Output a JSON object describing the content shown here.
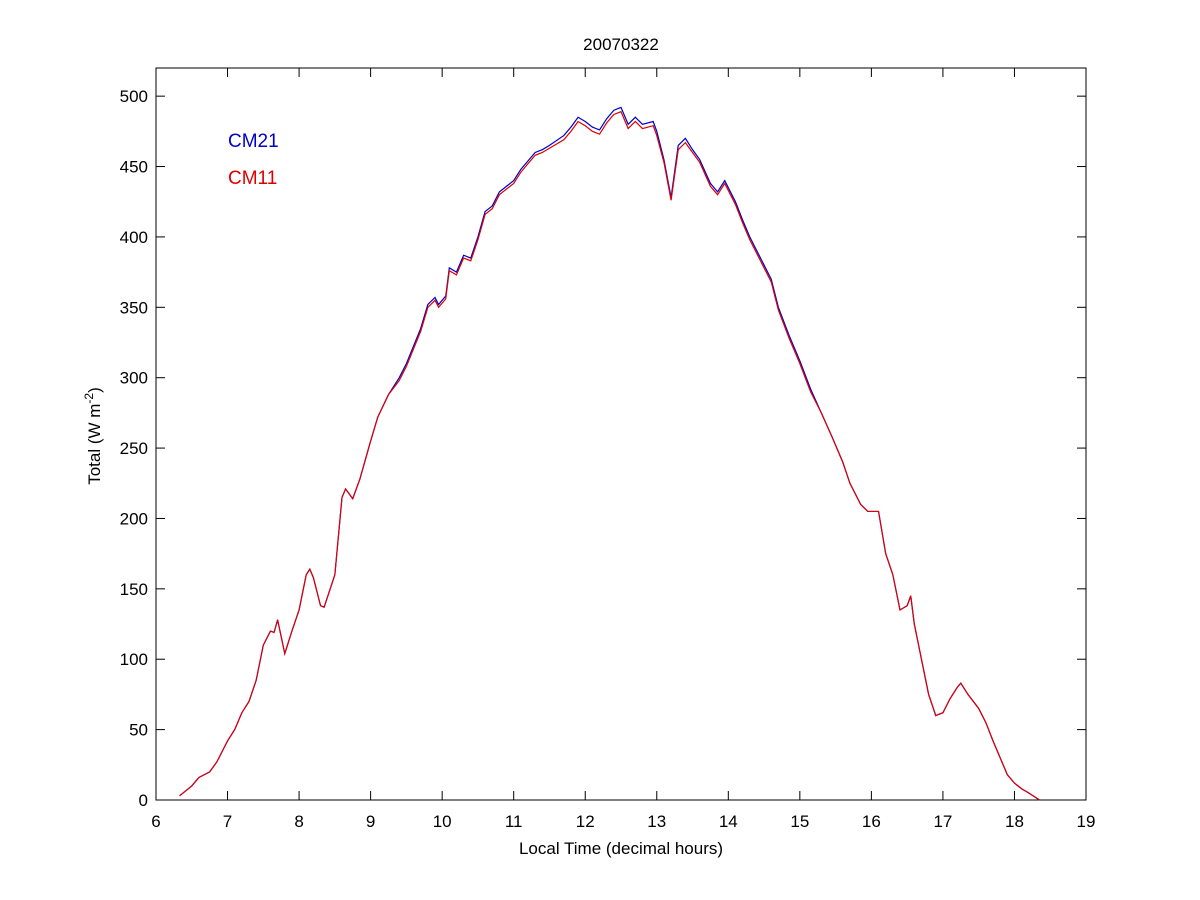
{
  "chart_data": {
    "type": "line",
    "title": "20070322",
    "xlabel": "Local Time (decimal hours)",
    "ylabel_parts": [
      "Total (W m",
      "-2",
      ")"
    ],
    "x": [
      6.33,
      6.5,
      6.6,
      6.75,
      6.85,
      7.0,
      7.1,
      7.2,
      7.3,
      7.4,
      7.5,
      7.6,
      7.65,
      7.7,
      7.8,
      7.9,
      8.0,
      8.1,
      8.15,
      8.2,
      8.3,
      8.35,
      8.5,
      8.6,
      8.65,
      8.75,
      8.85,
      9.0,
      9.1,
      9.25,
      9.4,
      9.5,
      9.7,
      9.8,
      9.9,
      9.95,
      10.05,
      10.1,
      10.2,
      10.3,
      10.4,
      10.5,
      10.6,
      10.7,
      10.8,
      11.0,
      11.1,
      11.3,
      11.4,
      11.5,
      11.7,
      11.8,
      11.9,
      12.0,
      12.1,
      12.2,
      12.3,
      12.4,
      12.5,
      12.6,
      12.7,
      12.8,
      12.95,
      13.0,
      13.1,
      13.2,
      13.3,
      13.4,
      13.5,
      13.6,
      13.75,
      13.85,
      13.95,
      14.1,
      14.2,
      14.3,
      14.45,
      14.6,
      14.7,
      14.85,
      15.0,
      15.15,
      15.3,
      15.45,
      15.6,
      15.7,
      15.85,
      15.95,
      16.0,
      16.1,
      16.2,
      16.3,
      16.4,
      16.5,
      16.55,
      16.6,
      16.7,
      16.8,
      16.9,
      17.0,
      17.1,
      17.2,
      17.25,
      17.35,
      17.5,
      17.6,
      17.7,
      17.8,
      17.9,
      18.0,
      18.1,
      18.2,
      18.35
    ],
    "series": [
      {
        "name": "CM21",
        "color": "#0000cc",
        "values": [
          3,
          10,
          16,
          20,
          27,
          42,
          50,
          62,
          70,
          85,
          110,
          120,
          119,
          128,
          104,
          120,
          135,
          160,
          164,
          158,
          138,
          137,
          160,
          215,
          221,
          214,
          228,
          255,
          272,
          288,
          300,
          310,
          335,
          352,
          357,
          352,
          358,
          378,
          375,
          387,
          385,
          400,
          418,
          422,
          432,
          440,
          448,
          460,
          462,
          465,
          472,
          478,
          485,
          482,
          478,
          476,
          484,
          490,
          492,
          480,
          485,
          480,
          482,
          475,
          455,
          428,
          465,
          470,
          462,
          455,
          438,
          432,
          440,
          425,
          412,
          400,
          385,
          370,
          350,
          330,
          312,
          292,
          275,
          258,
          240,
          225,
          210,
          205,
          205,
          205,
          175,
          160,
          135,
          138,
          145,
          125,
          100,
          75,
          60,
          62,
          72,
          80,
          83,
          75,
          65,
          55,
          42,
          30,
          18,
          12,
          8,
          5,
          0
        ]
      },
      {
        "name": "CM11",
        "color": "#dd0000",
        "values": [
          3,
          10,
          16,
          20,
          27,
          42,
          50,
          62,
          70,
          85,
          110,
          120,
          119,
          128,
          104,
          120,
          135,
          160,
          164,
          158,
          138,
          137,
          160,
          215,
          221,
          214,
          228,
          255,
          272,
          288,
          298,
          308,
          333,
          350,
          355,
          350,
          356,
          376,
          373,
          385,
          383,
          398,
          416,
          420,
          430,
          438,
          446,
          458,
          460,
          463,
          469,
          475,
          482,
          479,
          475,
          473,
          481,
          487,
          489,
          477,
          482,
          477,
          479,
          472,
          453,
          426,
          462,
          467,
          460,
          453,
          436,
          430,
          438,
          423,
          410,
          398,
          383,
          368,
          348,
          328,
          310,
          290,
          275,
          258,
          240,
          225,
          210,
          205,
          205,
          205,
          175,
          160,
          135,
          138,
          145,
          125,
          100,
          75,
          60,
          62,
          72,
          80,
          83,
          75,
          65,
          55,
          42,
          30,
          18,
          12,
          8,
          5,
          0
        ]
      }
    ],
    "xlim": [
      6,
      19
    ],
    "xticks": [
      6,
      7,
      8,
      9,
      10,
      11,
      12,
      13,
      14,
      15,
      16,
      17,
      18,
      19
    ],
    "ylim": [
      0,
      520
    ],
    "yticks": [
      0,
      50,
      100,
      150,
      200,
      250,
      300,
      350,
      400,
      450,
      500
    ],
    "legend": "upper left",
    "grid": false
  }
}
